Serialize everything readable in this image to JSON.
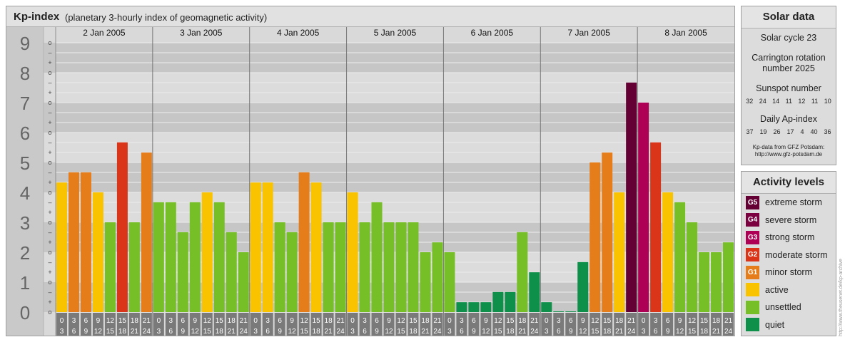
{
  "header": {
    "title": "Kp-index",
    "subtitle": "(planetary 3-hourly index of geomagnetic activity)"
  },
  "chart_data": {
    "type": "bar",
    "title": "Kp-index",
    "subtitle": "(planetary 3-hourly index of geomagnetic activity)",
    "ylim": [
      0,
      9
    ],
    "y_ticks": [
      "0",
      "1",
      "2",
      "3",
      "4",
      "5",
      "6",
      "7",
      "8",
      "9"
    ],
    "minor_tick_labels": [
      "o",
      "+",
      "–"
    ],
    "days": [
      "2 Jan 2005",
      "3 Jan 2005",
      "4 Jan 2005",
      "5 Jan 2005",
      "6 Jan 2005",
      "7 Jan 2005",
      "8 Jan 2005"
    ],
    "interval_starts": [
      "0",
      "3",
      "6",
      "9",
      "12",
      "15",
      "18",
      "21"
    ],
    "interval_ends": [
      "3",
      "6",
      "9",
      "12",
      "15",
      "18",
      "21",
      "24"
    ],
    "values": [
      [
        4.33,
        4.67,
        4.67,
        4.0,
        3.0,
        5.67,
        3.0,
        5.33
      ],
      [
        3.67,
        3.67,
        2.67,
        3.67,
        4.0,
        3.67,
        2.67,
        2.0
      ],
      [
        4.33,
        4.33,
        3.0,
        2.67,
        4.67,
        4.33,
        3.0,
        3.0
      ],
      [
        4.0,
        3.0,
        3.67,
        3.0,
        3.0,
        3.0,
        2.0,
        2.33
      ],
      [
        2.0,
        0.33,
        0.33,
        0.33,
        0.67,
        0.67,
        2.67,
        1.33
      ],
      [
        0.33,
        0.0,
        0.0,
        1.67,
        5.0,
        5.33,
        4.0,
        7.67
      ],
      [
        7.0,
        5.67,
        4.0,
        3.67,
        3.0,
        2.0,
        2.0,
        2.33
      ]
    ],
    "color_scale": [
      {
        "min": 0,
        "max": 1.99,
        "color": "#0e8f4a"
      },
      {
        "min": 2,
        "max": 3.99,
        "color": "#77bf27"
      },
      {
        "min": 4,
        "max": 4.49,
        "color": "#f9c300"
      },
      {
        "min": 4.5,
        "max": 5.49,
        "color": "#e57d1a"
      },
      {
        "min": 5.5,
        "max": 6.49,
        "color": "#da3518"
      },
      {
        "min": 6.5,
        "max": 7.49,
        "color": "#ae0055"
      },
      {
        "min": 7.5,
        "max": 9,
        "color": "#650034"
      }
    ]
  },
  "solar": {
    "title": "Solar data",
    "cycle": "Solar cycle 23",
    "rotation_line1": "Carrington rotation",
    "rotation_line2": "number 2025",
    "sunspot_title": "Sunspot number",
    "sunspot_values": [
      "32",
      "24",
      "14",
      "11",
      "12",
      "11",
      "10"
    ],
    "ap_title": "Daily Ap-index",
    "ap_values": [
      "37",
      "19",
      "26",
      "17",
      "4",
      "40",
      "36"
    ],
    "credit_line1": "Kp-data from GFZ Potsdam:",
    "credit_line2": "http://www.gfz-potsdam.de"
  },
  "levels": {
    "title": "Activity levels",
    "items": [
      {
        "badge": "G5",
        "label": "extreme storm",
        "color": "#650034"
      },
      {
        "badge": "G4",
        "label": "severe storm",
        "color": "#7a0040"
      },
      {
        "badge": "G3",
        "label": "strong storm",
        "color": "#ae0055"
      },
      {
        "badge": "G2",
        "label": "moderate storm",
        "color": "#da3518"
      },
      {
        "badge": "G1",
        "label": "minor storm",
        "color": "#e57d1a"
      },
      {
        "badge": "",
        "label": "active",
        "color": "#f9c300"
      },
      {
        "badge": "",
        "label": "unsettled",
        "color": "#77bf27"
      },
      {
        "badge": "",
        "label": "quiet",
        "color": "#0e8f4a"
      }
    ]
  },
  "watermark": "http://www.theusenet.de/kp-archive"
}
